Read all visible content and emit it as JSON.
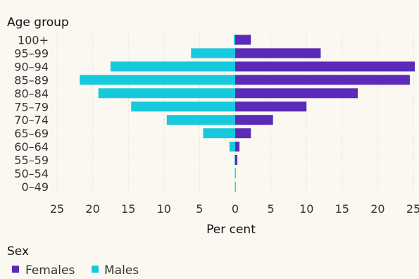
{
  "chart_data": {
    "type": "bar",
    "orientation": "horizontal-diverging",
    "y_title": "Age group",
    "xlabel": "Per cent",
    "categories": [
      "100+",
      "95–99",
      "90–94",
      "85–89",
      "80–84",
      "75–79",
      "70–74",
      "65–69",
      "60–64",
      "55–59",
      "50–54",
      "0–49"
    ],
    "series": [
      {
        "name": "Females",
        "side": "right",
        "color": "#5b2ab8",
        "values": [
          2.2,
          12.0,
          25.2,
          24.5,
          17.2,
          10.0,
          5.3,
          2.2,
          0.6,
          0.3,
          0.05,
          0.05
        ]
      },
      {
        "name": "Males",
        "side": "left",
        "color": "#17c9dc",
        "values": [
          0.2,
          6.2,
          17.5,
          21.8,
          19.2,
          14.6,
          9.6,
          4.5,
          0.8,
          0.1,
          0.05,
          0.05
        ]
      }
    ],
    "xlim": [
      -25,
      25
    ],
    "xticks": [
      -25,
      -20,
      -15,
      -10,
      -5,
      0,
      5,
      10,
      15,
      20,
      25
    ],
    "xtick_labels": [
      "25",
      "20",
      "15",
      "10",
      "5",
      "0",
      "5",
      "10",
      "15",
      "20",
      "25"
    ],
    "grid": true,
    "legend": {
      "title": "Sex",
      "position": "bottom-left",
      "order": [
        "Females",
        "Males"
      ]
    }
  }
}
